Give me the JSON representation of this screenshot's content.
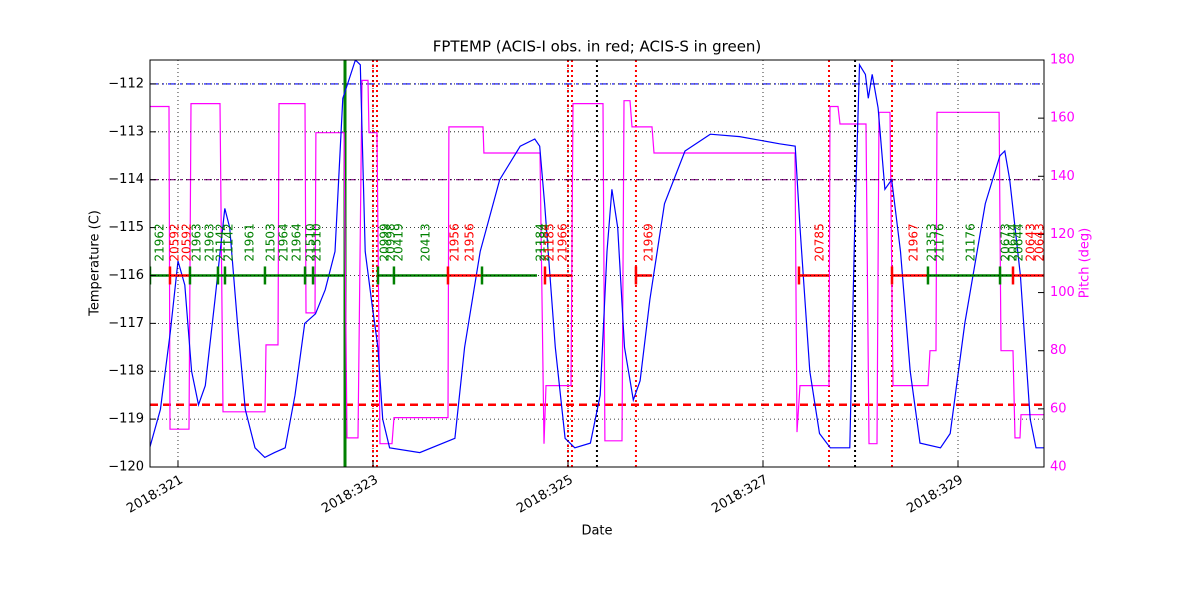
{
  "chart_data": {
    "type": "line",
    "title": "FPTEMP (ACIS-I obs. in red; ACIS-S in green)",
    "xlabel": "Date",
    "ylabel": "Temperature (C)",
    "y2label": "Pitch (deg)",
    "y2color": "#ff00ff",
    "xlim": [
      320.713,
      329.882
    ],
    "ylim": [
      -120,
      -111.5
    ],
    "y2lim": [
      40,
      180
    ],
    "xticks": [
      {
        "value": 321,
        "label": "2018:321"
      },
      {
        "value": 323,
        "label": "2018:323"
      },
      {
        "value": 325,
        "label": "2018:325"
      },
      {
        "value": 327,
        "label": "2018:327"
      },
      {
        "value": 329,
        "label": "2018:329"
      }
    ],
    "yticks": [
      {
        "value": -120,
        "label": "−120"
      },
      {
        "value": -119,
        "label": "−119"
      },
      {
        "value": -118,
        "label": "−118"
      },
      {
        "value": -117,
        "label": "−117"
      },
      {
        "value": -116,
        "label": "−116"
      },
      {
        "value": -115,
        "label": "−115"
      },
      {
        "value": -114,
        "label": "−114"
      },
      {
        "value": -113,
        "label": "−113"
      },
      {
        "value": -112,
        "label": "−112"
      }
    ],
    "y2ticks": [
      40,
      60,
      80,
      100,
      120,
      140,
      160,
      180
    ],
    "grid": true,
    "series": [
      {
        "color": "#0000ff",
        "x": [
          320.71,
          320.82,
          320.92,
          321.0,
          321.07,
          321.14,
          321.21,
          321.28,
          321.38,
          321.48,
          321.53,
          321.61,
          321.69,
          321.79,
          321.89,
          321.99,
          322.1,
          322.2,
          322.3,
          322.41,
          322.51,
          322.61,
          322.69,
          322.74,
          322.82,
          322.87,
          322.92,
          322.99,
          323.05,
          323.1,
          323.17,
          323.48,
          323.84,
          323.94,
          324.1,
          324.3,
          324.51,
          324.66,
          324.71,
          324.76,
          324.87,
          324.97,
          325.07,
          325.23,
          325.33,
          325.4,
          325.45,
          325.51,
          325.58,
          325.67,
          325.74,
          325.84,
          325.99,
          326.2,
          326.46,
          326.76,
          327.17,
          327.33,
          327.38,
          327.48,
          327.58,
          327.69,
          327.89,
          327.94,
          327.99,
          328.05,
          328.08,
          328.12,
          328.18,
          328.25,
          328.32,
          328.41,
          328.51,
          328.61,
          328.82,
          328.92,
          329.07,
          329.28,
          329.43,
          329.48,
          329.53,
          329.64,
          329.74,
          329.8,
          329.88
        ],
        "values": [
          -119.6,
          -118.8,
          -117.2,
          -115.7,
          -116.2,
          -118.0,
          -118.7,
          -118.3,
          -116.5,
          -114.6,
          -115.0,
          -117.0,
          -118.8,
          -119.6,
          -119.8,
          -119.7,
          -119.6,
          -118.5,
          -117.0,
          -116.8,
          -116.3,
          -115.5,
          -112.3,
          -112.0,
          -111.5,
          -111.6,
          -115.5,
          -116.6,
          -117.5,
          -119.0,
          -119.6,
          -119.7,
          -119.4,
          -117.5,
          -115.5,
          -114.0,
          -113.3,
          -113.15,
          -113.3,
          -114.5,
          -117.5,
          -119.4,
          -119.6,
          -119.5,
          -118.5,
          -115.5,
          -114.2,
          -115.0,
          -117.5,
          -118.6,
          -118.2,
          -116.5,
          -114.5,
          -113.4,
          -113.05,
          -113.1,
          -113.25,
          -113.3,
          -115.0,
          -118.0,
          -119.3,
          -119.6,
          -119.6,
          -115.0,
          -111.6,
          -111.8,
          -112.3,
          -111.8,
          -112.5,
          -114.2,
          -114.0,
          -115.5,
          -118.0,
          -119.5,
          -119.6,
          -119.3,
          -117.0,
          -114.5,
          -113.5,
          -113.4,
          -114.0,
          -116.0,
          -119.0,
          -119.6,
          -119.6
        ]
      },
      {
        "color": "#ff00ff",
        "axis": "y2",
        "x": [
          320.713,
          320.908,
          320.918,
          321.113,
          321.133,
          321.431,
          321.462,
          321.892,
          321.903,
          322.026,
          322.036,
          322.303,
          322.313,
          322.405,
          322.415,
          322.703,
          322.733,
          322.846,
          322.887,
          322.949,
          322.959,
          323.041,
          323.072,
          323.195,
          323.215,
          323.769,
          323.779,
          324.128,
          324.138,
          324.713,
          324.754,
          324.774,
          325.031,
          325.051,
          325.359,
          325.379,
          325.554,
          325.574,
          325.636,
          325.656,
          325.862,
          325.882,
          327.328,
          327.349,
          327.379,
          327.677,
          327.687,
          327.769,
          327.79,
          328.056,
          328.087,
          328.169,
          328.19,
          328.303,
          328.333,
          328.692,
          328.713,
          328.774,
          328.785,
          329.421,
          329.441,
          329.564,
          329.585,
          329.636,
          329.646,
          329.882
        ],
        "values": [
          164,
          164,
          53,
          53,
          165,
          165,
          59,
          59,
          82,
          82,
          165,
          165,
          93,
          93,
          155,
          155,
          50,
          50,
          173,
          173,
          155,
          155,
          48,
          48,
          57,
          57,
          157,
          157,
          148,
          148,
          48,
          68,
          68,
          165,
          165,
          49,
          49,
          166,
          166,
          157,
          157,
          148,
          148,
          52,
          68,
          68,
          164,
          164,
          158,
          158,
          48,
          48,
          162,
          162,
          68,
          68,
          80,
          80,
          162,
          162,
          80,
          80,
          50,
          50,
          58,
          58
        ]
      }
    ],
    "hlines": [
      {
        "value": -112,
        "color": "#0000ff",
        "style": "dashdot"
      },
      {
        "value": -114,
        "color": "#800080",
        "style": "dashdot"
      },
      {
        "value": -118.7,
        "color": "#ff0000",
        "style": "dashed"
      }
    ],
    "vlines": [
      {
        "x": 322.713,
        "color": "#008000",
        "style": "solid"
      },
      {
        "x": 323.0,
        "color": "#ff0000",
        "style": "dotted"
      },
      {
        "x": 323.041,
        "color": "#ff0000",
        "style": "dotted"
      },
      {
        "x": 325.0,
        "color": "#ff0000",
        "style": "dotted"
      },
      {
        "x": 325.041,
        "color": "#ff0000",
        "style": "dotted"
      },
      {
        "x": 325.297,
        "color": "#000000",
        "style": "dotted"
      },
      {
        "x": 325.697,
        "color": "#ff0000",
        "style": "dotted"
      },
      {
        "x": 327.677,
        "color": "#ff0000",
        "style": "dotted"
      },
      {
        "x": 327.944,
        "color": "#000000",
        "style": "dotted"
      },
      {
        "x": 328.323,
        "color": "#ff0000",
        "style": "dotted"
      }
    ],
    "obs_level": -116,
    "obs_segments": {
      "start": [
        320.713,
        320.918,
        321.123,
        321.41,
        321.482,
        321.892,
        322.303,
        322.385,
        323.051,
        323.215,
        323.769,
        324.118,
        324.764,
        325.697,
        327.369,
        328.323,
        328.692,
        329.431,
        329.564
      ],
      "stop": [
        320.918,
        321.123,
        321.41,
        321.482,
        321.892,
        322.303,
        322.385,
        322.713,
        323.215,
        323.769,
        324.118,
        324.682,
        325.041,
        325.862,
        327.677,
        328.692,
        329.431,
        329.564,
        329.882
      ],
      "colors": [
        "#008000",
        "#ff0000",
        "#008000",
        "#008000",
        "#008000",
        "#008000",
        "#008000",
        "#008000",
        "#008000",
        "#008000",
        "#ff0000",
        "#008000",
        "#ff0000",
        "#ff0000",
        "#ff0000",
        "#ff0000",
        "#008000",
        "#008000",
        "#ff0000"
      ]
    },
    "obs_labels": {
      "text": [
        "21962",
        "20592",
        "20592",
        "21963",
        "21963",
        "21142",
        "21142",
        "21961",
        "21503",
        "21964",
        "21964",
        "21510",
        "21510",
        "20999",
        "20998",
        "20419",
        "20413",
        "21956",
        "21956",
        "21184",
        "21184",
        "21185",
        "21966",
        "21969",
        "20785",
        "21967",
        "21353",
        "21176",
        "21176",
        "20673",
        "20644",
        "20644",
        "20643",
        "20643"
      ],
      "x": [
        320.815,
        320.969,
        321.092,
        321.195,
        321.328,
        321.441,
        321.523,
        321.738,
        321.954,
        322.087,
        322.221,
        322.364,
        322.426,
        323.123,
        323.185,
        323.267,
        323.544,
        323.841,
        323.995,
        324.723,
        324.764,
        324.815,
        324.949,
        325.831,
        327.585,
        328.549,
        328.733,
        328.815,
        329.133,
        329.492,
        329.564,
        329.626,
        329.749,
        329.841
      ],
      "colors": [
        "#008000",
        "#ff0000",
        "#ff0000",
        "#008000",
        "#008000",
        "#008000",
        "#008000",
        "#008000",
        "#008000",
        "#008000",
        "#008000",
        "#008000",
        "#008000",
        "#008000",
        "#008000",
        "#008000",
        "#008000",
        "#ff0000",
        "#ff0000",
        "#008000",
        "#008000",
        "#ff0000",
        "#ff0000",
        "#ff0000",
        "#ff0000",
        "#ff0000",
        "#008000",
        "#008000",
        "#008000",
        "#008000",
        "#008000",
        "#008000",
        "#ff0000",
        "#ff0000"
      ]
    }
  }
}
